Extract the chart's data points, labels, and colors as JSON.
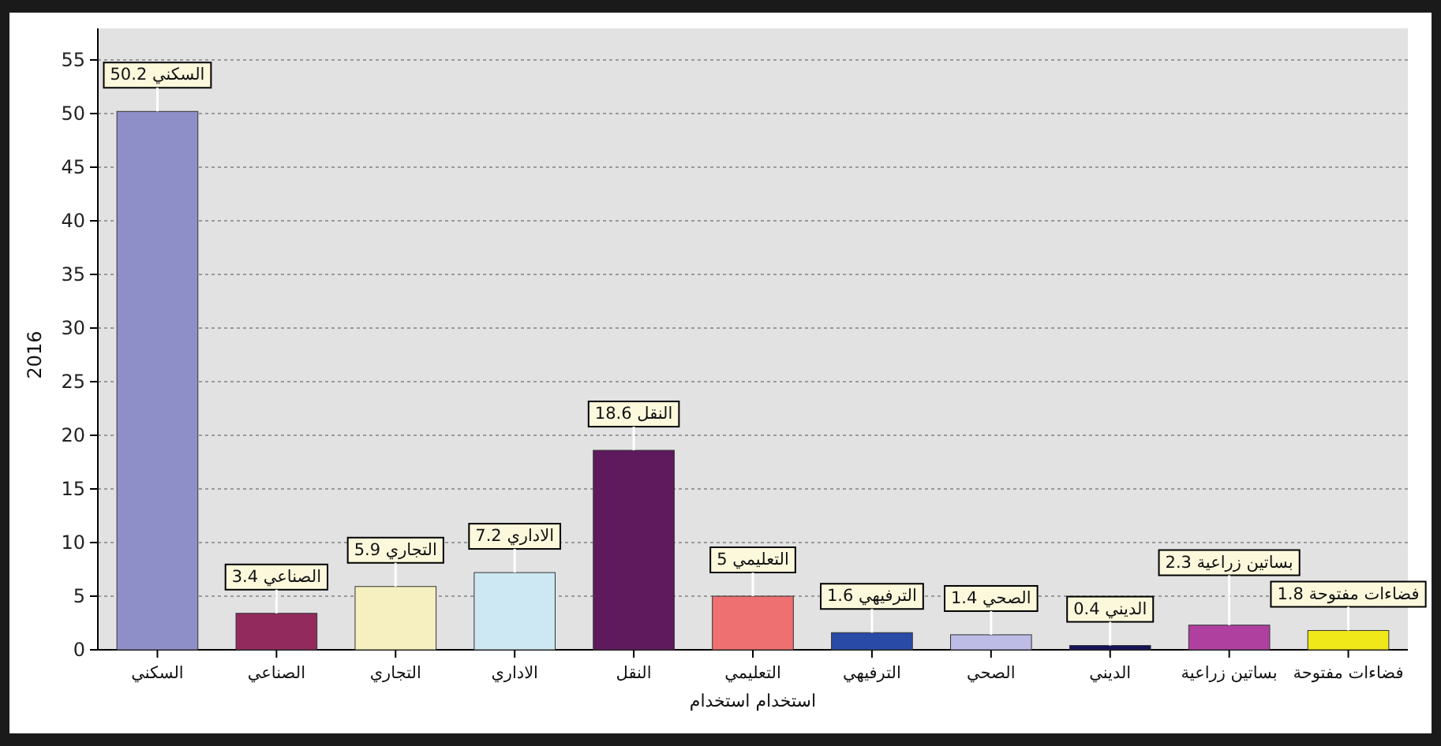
{
  "chart_data": {
    "type": "bar",
    "xlabel": "استخدام استخدام",
    "ylabel": "2016",
    "categories": [
      "السكني",
      "الصناعي",
      "التجاري",
      "الاداري",
      "النقل",
      "التعليمي",
      "الترفيهي",
      "الصحي",
      "الديني",
      "بساتين زراعية",
      "فضاءات مفتوحة"
    ],
    "values": [
      50.2,
      3.4,
      5.9,
      7.2,
      18.6,
      5,
      1.6,
      1.4,
      0.4,
      2.3,
      1.8
    ],
    "colors": [
      "#8e8ec8",
      "#922a5e",
      "#f6f0c0",
      "#cde8f2",
      "#5f1a5e",
      "#ef7070",
      "#2a4aa8",
      "#bcbce6",
      "#14145a",
      "#b040a0",
      "#f0e818"
    ],
    "value_labels": [
      "السكني 50.2",
      "الصناعي 3.4",
      "التجاري 5.9",
      "الاداري 7.2",
      "النقل 18.6",
      "التعليمي 5",
      "الترفيهي 1.6",
      "الصحي 1.4",
      "الديني 0.4",
      "بساتين زراعية 2.3",
      "فضاءات مفتوحة 1.8"
    ],
    "ylim": [
      0,
      55
    ],
    "yticks": [
      0,
      5,
      10,
      15,
      20,
      25,
      30,
      35,
      40,
      45,
      50,
      55
    ],
    "grid": "y"
  }
}
